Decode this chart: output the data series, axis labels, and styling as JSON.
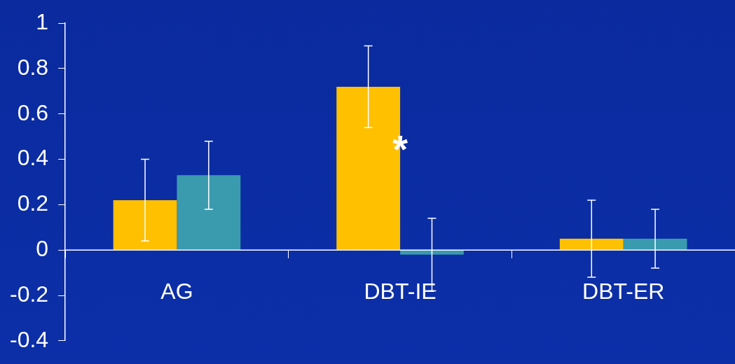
{
  "chart_data": {
    "type": "bar",
    "categories": [
      "AG",
      "DBT-IE",
      "DBT-ER"
    ],
    "series": [
      {
        "color": "#ffc000",
        "values": [
          0.22,
          0.72,
          0.05
        ],
        "errors": [
          0.18,
          0.18,
          0.17
        ]
      },
      {
        "color": "#3a9aae",
        "values": [
          0.33,
          -0.02,
          0.05
        ],
        "errors": [
          0.15,
          0.16,
          0.13
        ]
      }
    ],
    "ylim": [
      -0.4,
      1
    ],
    "yticks": [
      -0.4,
      -0.2,
      0,
      0.2,
      0.4,
      0.6,
      0.8,
      1
    ],
    "grid": false,
    "legend": false,
    "annotations": [
      {
        "text": "*",
        "x": "DBT-IE",
        "y": 0.47
      }
    ]
  }
}
